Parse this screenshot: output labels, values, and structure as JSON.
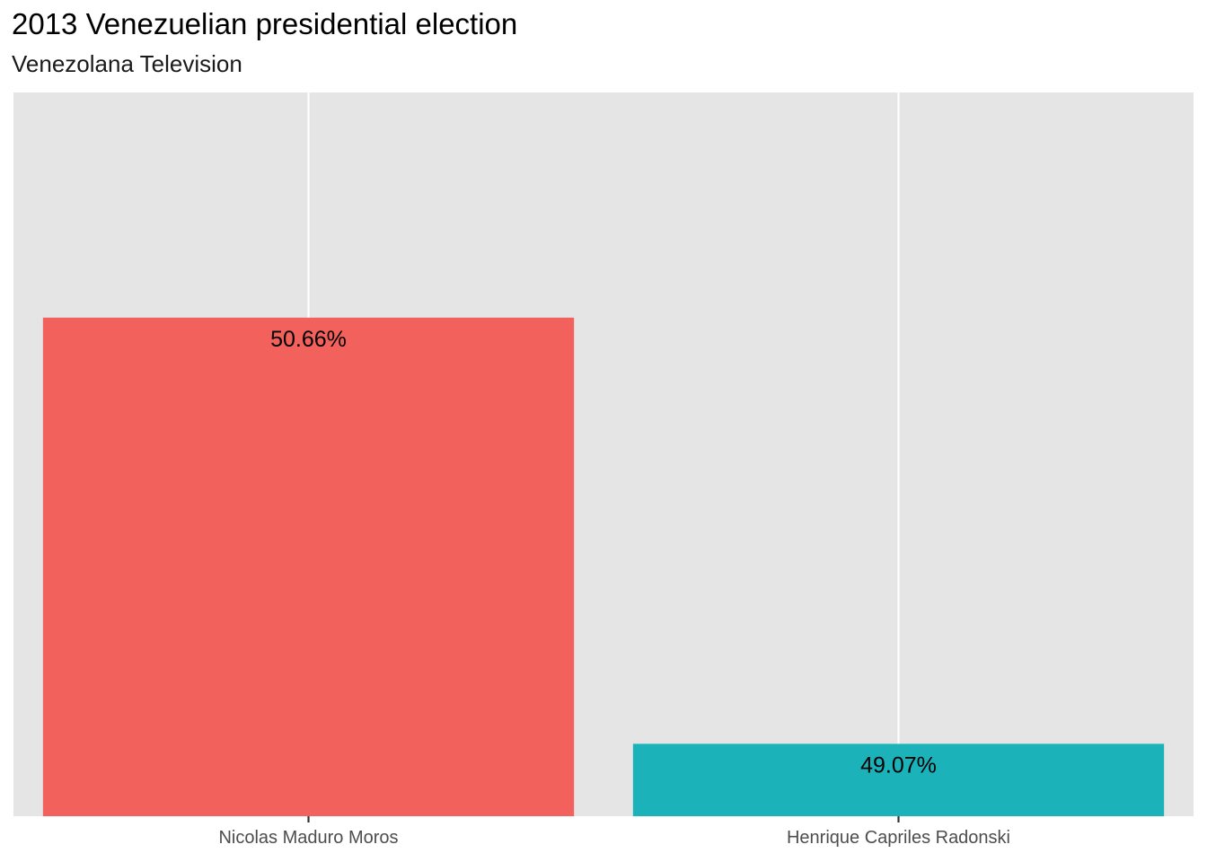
{
  "chart_data": {
    "type": "bar",
    "title": "2013 Venezuelian presidential election",
    "subtitle": "Venezolana Television",
    "xlabel": "",
    "ylabel": "",
    "categories": [
      "Nicolas Maduro Moros",
      "Henrique Capriles Radonski"
    ],
    "values": [
      50.66,
      49.07
    ],
    "labels": [
      "50.66%",
      "49.07%"
    ],
    "colors": [
      "#F2615C",
      "#1BB3B9"
    ],
    "ylim": [
      48.8,
      51.5
    ],
    "grid": true,
    "background": "#E5E5E5",
    "gridline_color": "#FFFFFF",
    "legend": "none"
  }
}
